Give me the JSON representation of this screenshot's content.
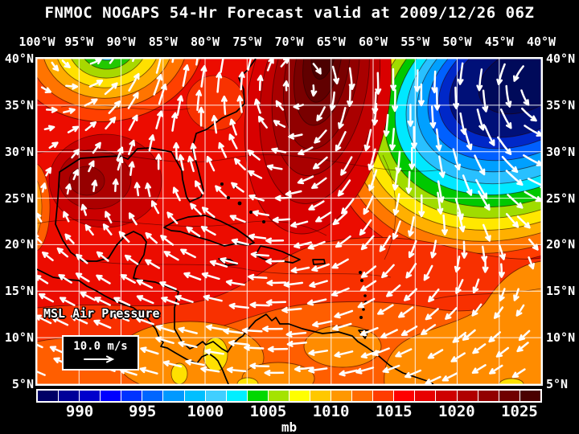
{
  "title": "FNMOC NOGAPS 54-Hr Forecast valid at 2009/12/26 06Z",
  "axes": {
    "lon_labels": [
      "100°W",
      "95°W",
      "90°W",
      "85°W",
      "80°W",
      "75°W",
      "70°W",
      "65°W",
      "60°W",
      "55°W",
      "50°W",
      "45°W",
      "40°W"
    ],
    "lat_labels": [
      "40°N",
      "35°N",
      "30°N",
      "25°N",
      "20°N",
      "15°N",
      "10°N",
      "5°N"
    ]
  },
  "map": {
    "field_label": "MSL Air Pressure",
    "wind_scale_label": "10.0 m/s",
    "arrow_color": "#ffffff",
    "grid_color": "#ffffff",
    "coast_color": "#000000",
    "base_fill": "#EC0C00"
  },
  "colorbar": {
    "unit": "mb",
    "tick_labels": [
      "990",
      "995",
      "1000",
      "1005",
      "1010",
      "1015",
      "1020",
      "1025"
    ],
    "cell_colors": [
      "#000066",
      "#000099",
      "#0000CC",
      "#0000FF",
      "#0033FF",
      "#0066FF",
      "#0099FF",
      "#00BFFF",
      "#40CFFF",
      "#00EFFF",
      "#00D800",
      "#A4E300",
      "#FFFF00",
      "#FFC800",
      "#FF9800",
      "#FF6C00",
      "#FF3C00",
      "#FF0000",
      "#E80000",
      "#CE0000",
      "#B00000",
      "#920000",
      "#700000",
      "#4A0000"
    ]
  },
  "chart_data": {
    "type": "heatmap",
    "title": "FNMOC NOGAPS 54-Hr Forecast valid at 2009/12/26 06Z",
    "field": "MSL Air Pressure",
    "unit": "mb",
    "lon_range_deg_w": [
      100,
      40
    ],
    "lat_range_deg_n": [
      5,
      40
    ],
    "contour_levels_mb": [
      990,
      995,
      1000,
      1005,
      1010,
      1015,
      1020,
      1025
    ],
    "features": [
      {
        "type": "low",
        "location": "≈45°W 36°N",
        "value_mb": "< 990"
      },
      {
        "type": "high",
        "location": "≈70°W 38°N",
        "value_mb": "> 1025"
      },
      {
        "type": "low",
        "location": "≈95°W 41°N (top edge)",
        "value_mb": "≈ 1000"
      },
      {
        "type": "low-pressure band",
        "location": "tropics 5–10°N",
        "value_mb": "≈ 1010"
      },
      {
        "type": "ridge",
        "location": "NW Gulf of Mexico ≈93°W 27°N",
        "value_mb": "≈ 1020"
      }
    ],
    "wind_reference": {
      "label": "10.0 m/s"
    }
  }
}
